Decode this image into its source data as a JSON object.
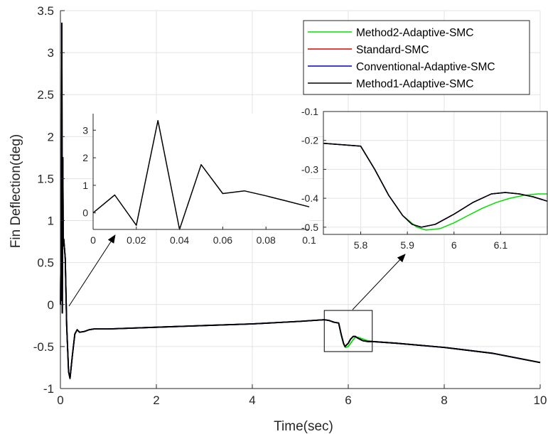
{
  "chart_data": {
    "type": "line",
    "title": "",
    "xlabel": "Time(sec)",
    "ylabel": "Fin Deflection(deg)",
    "xlim": [
      0,
      10
    ],
    "ylim": [
      -1,
      3.5
    ],
    "xticks": [
      0,
      2,
      4,
      6,
      8,
      10
    ],
    "yticks": [
      -1,
      -0.5,
      0,
      0.5,
      1,
      1.5,
      2,
      2.5,
      3,
      3.5
    ],
    "grid": true,
    "legend_position": "top-right",
    "colors": {
      "Method2-Adaptive-SMC": "#00e000",
      "Standard-SMC": "#e00000",
      "Conventional-Adaptive-SMC": "#0000c8",
      "Method1-Adaptive-SMC": "#000000"
    },
    "series": [
      {
        "name": "Method2-Adaptive-SMC",
        "x": [
          0,
          0.01,
          0.02,
          0.03,
          0.04,
          0.05,
          0.06,
          0.07,
          0.1,
          0.13,
          0.17,
          0.2,
          0.25,
          0.3,
          0.35,
          0.4,
          0.5,
          0.6,
          0.7,
          1,
          2,
          3,
          4,
          5,
          5.5,
          5.6,
          5.7,
          5.8,
          5.85,
          5.9,
          5.94,
          6,
          6.05,
          6.1,
          6.15,
          6.2,
          6.3,
          6.4,
          6.5,
          7,
          8,
          9,
          10
        ],
        "y": [
          0,
          0.65,
          0.05,
          3.35,
          -0.1,
          1.75,
          0.7,
          0.78,
          0.55,
          -0.25,
          -0.8,
          -0.88,
          -0.6,
          -0.35,
          -0.3,
          -0.33,
          -0.32,
          -0.3,
          -0.29,
          -0.29,
          -0.27,
          -0.25,
          -0.23,
          -0.2,
          -0.18,
          -0.19,
          -0.21,
          -0.22,
          -0.36,
          -0.47,
          -0.51,
          -0.5,
          -0.46,
          -0.42,
          -0.39,
          -0.39,
          -0.41,
          -0.43,
          -0.44,
          -0.46,
          -0.51,
          -0.58,
          -0.69
        ]
      },
      {
        "name": "Standard-SMC",
        "x": [
          0,
          0.01,
          0.02,
          0.03,
          0.04,
          0.05,
          0.06,
          0.07,
          0.1,
          0.13,
          0.17,
          0.2,
          0.25,
          0.3,
          0.35,
          0.4,
          0.5,
          0.6,
          0.7,
          1,
          2,
          3,
          4,
          5,
          5.5,
          5.6,
          5.7,
          5.8,
          5.85,
          5.9,
          5.93,
          6,
          6.05,
          6.1,
          6.15,
          6.2,
          6.3,
          6.4,
          6.5,
          7,
          8,
          9,
          10
        ],
        "y": [
          0,
          0.65,
          0.05,
          3.35,
          -0.1,
          1.75,
          0.7,
          0.78,
          0.55,
          -0.25,
          -0.8,
          -0.88,
          -0.6,
          -0.35,
          -0.3,
          -0.33,
          -0.32,
          -0.3,
          -0.29,
          -0.29,
          -0.27,
          -0.25,
          -0.23,
          -0.2,
          -0.18,
          -0.19,
          -0.21,
          -0.22,
          -0.35,
          -0.46,
          -0.5,
          -0.46,
          -0.41,
          -0.38,
          -0.38,
          -0.4,
          -0.43,
          -0.44,
          -0.44,
          -0.46,
          -0.51,
          -0.58,
          -0.69
        ]
      },
      {
        "name": "Conventional-Adaptive-SMC",
        "x": [
          0,
          0.01,
          0.02,
          0.03,
          0.04,
          0.05,
          0.06,
          0.07,
          0.1,
          0.13,
          0.17,
          0.2,
          0.25,
          0.3,
          0.35,
          0.4,
          0.5,
          0.6,
          0.7,
          1,
          2,
          3,
          4,
          5,
          5.5,
          5.6,
          5.7,
          5.8,
          5.85,
          5.9,
          5.93,
          6,
          6.05,
          6.1,
          6.15,
          6.2,
          6.3,
          6.4,
          6.5,
          7,
          8,
          9,
          10
        ],
        "y": [
          0,
          0.65,
          0.05,
          3.35,
          -0.1,
          1.75,
          0.7,
          0.78,
          0.55,
          -0.25,
          -0.8,
          -0.88,
          -0.6,
          -0.35,
          -0.3,
          -0.33,
          -0.32,
          -0.3,
          -0.29,
          -0.29,
          -0.27,
          -0.25,
          -0.23,
          -0.2,
          -0.18,
          -0.19,
          -0.21,
          -0.22,
          -0.35,
          -0.46,
          -0.5,
          -0.46,
          -0.41,
          -0.38,
          -0.38,
          -0.4,
          -0.43,
          -0.44,
          -0.44,
          -0.46,
          -0.51,
          -0.58,
          -0.69
        ]
      },
      {
        "name": "Method1-Adaptive-SMC",
        "x": [
          0,
          0.01,
          0.02,
          0.03,
          0.04,
          0.05,
          0.06,
          0.07,
          0.1,
          0.13,
          0.17,
          0.2,
          0.25,
          0.3,
          0.35,
          0.4,
          0.5,
          0.6,
          0.7,
          1,
          2,
          3,
          4,
          5,
          5.5,
          5.6,
          5.7,
          5.8,
          5.85,
          5.9,
          5.93,
          6,
          6.05,
          6.1,
          6.15,
          6.2,
          6.3,
          6.4,
          6.5,
          7,
          8,
          9,
          10
        ],
        "y": [
          0,
          0.65,
          0.05,
          3.35,
          -0.1,
          1.75,
          0.7,
          0.78,
          0.55,
          -0.25,
          -0.8,
          -0.88,
          -0.6,
          -0.35,
          -0.3,
          -0.33,
          -0.32,
          -0.3,
          -0.29,
          -0.29,
          -0.27,
          -0.25,
          -0.23,
          -0.2,
          -0.18,
          -0.19,
          -0.21,
          -0.22,
          -0.35,
          -0.46,
          -0.5,
          -0.46,
          -0.41,
          -0.38,
          -0.38,
          -0.4,
          -0.43,
          -0.44,
          -0.44,
          -0.46,
          -0.51,
          -0.58,
          -0.69
        ]
      }
    ],
    "insets": [
      {
        "xlim": [
          0,
          0.1
        ],
        "ylim": [
          -0.6,
          3.6
        ],
        "xticks": [
          0,
          0.02,
          0.04,
          0.06,
          0.08,
          0.1
        ],
        "xtick_labels": [
          "0",
          "0.02",
          "0.04",
          "0.06",
          "0.08",
          "0.1"
        ],
        "yticks": [
          0,
          1,
          2,
          3
        ],
        "ytick_labels": [
          "0",
          "1",
          "2",
          "3"
        ],
        "grid": false,
        "series": [
          {
            "name": "Method1-Adaptive-SMC",
            "x": [
              0,
              0.01,
              0.02,
              0.03,
              0.04,
              0.05,
              0.06,
              0.07,
              0.08,
              0.09,
              0.1
            ],
            "y": [
              0,
              0.65,
              -0.45,
              3.35,
              -0.6,
              1.75,
              0.7,
              0.8,
              0.62,
              0.42,
              0.22
            ]
          }
        ]
      },
      {
        "xlim": [
          5.72,
          6.2
        ],
        "ylim": [
          -0.525,
          -0.1
        ],
        "xticks": [
          5.8,
          5.9,
          6,
          6.1
        ],
        "xtick_labels": [
          "5.8",
          "5.9",
          "6",
          "6.1"
        ],
        "yticks": [
          -0.1,
          -0.2,
          -0.3,
          -0.4,
          -0.5
        ],
        "ytick_labels": [
          "-0.1",
          "-0.2",
          "-0.3",
          "-0.4",
          "-0.5"
        ],
        "grid": true,
        "series": [
          {
            "name": "Method2-Adaptive-SMC",
            "x": [
              5.72,
              5.8,
              5.83,
              5.86,
              5.89,
              5.92,
              5.94,
              5.97,
              6,
              6.03,
              6.06,
              6.09,
              6.12,
              6.15,
              6.18,
              6.2
            ],
            "y": [
              -0.21,
              -0.22,
              -0.3,
              -0.39,
              -0.46,
              -0.5,
              -0.51,
              -0.505,
              -0.485,
              -0.46,
              -0.435,
              -0.415,
              -0.4,
              -0.39,
              -0.385,
              -0.385
            ]
          },
          {
            "name": "Standard-SMC",
            "x": [
              5.72,
              5.8,
              5.83,
              5.86,
              5.89,
              5.91,
              5.93,
              5.96,
              6,
              6.04,
              6.08,
              6.11,
              6.14,
              6.17,
              6.2
            ],
            "y": [
              -0.21,
              -0.22,
              -0.3,
              -0.39,
              -0.46,
              -0.49,
              -0.5,
              -0.49,
              -0.455,
              -0.415,
              -0.385,
              -0.38,
              -0.385,
              -0.395,
              -0.41
            ]
          },
          {
            "name": "Conventional-Adaptive-SMC",
            "x": [
              5.72,
              5.8,
              5.83,
              5.86,
              5.89,
              5.91,
              5.93,
              5.96,
              6,
              6.04,
              6.08,
              6.11,
              6.14,
              6.17,
              6.2
            ],
            "y": [
              -0.21,
              -0.22,
              -0.3,
              -0.39,
              -0.46,
              -0.49,
              -0.5,
              -0.49,
              -0.455,
              -0.415,
              -0.385,
              -0.38,
              -0.385,
              -0.395,
              -0.41
            ]
          },
          {
            "name": "Method1-Adaptive-SMC",
            "x": [
              5.72,
              5.8,
              5.83,
              5.86,
              5.89,
              5.91,
              5.93,
              5.96,
              6,
              6.04,
              6.08,
              6.11,
              6.14,
              6.17,
              6.2
            ],
            "y": [
              -0.21,
              -0.22,
              -0.3,
              -0.39,
              -0.46,
              -0.49,
              -0.5,
              -0.49,
              -0.455,
              -0.415,
              -0.385,
              -0.38,
              -0.385,
              -0.395,
              -0.41
            ]
          }
        ]
      }
    ]
  }
}
